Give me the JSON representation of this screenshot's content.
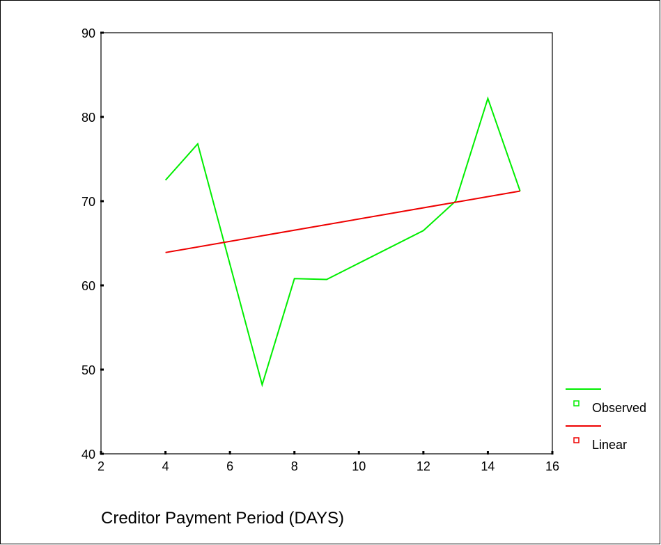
{
  "chart_data": {
    "type": "line",
    "title": "",
    "xlabel": "Creditor Payment Period (DAYS)",
    "ylabel": "",
    "xlim": [
      2,
      16
    ],
    "ylim": [
      40,
      90
    ],
    "x_ticks": [
      "2",
      "4",
      "6",
      "8",
      "10",
      "12",
      "14",
      "16"
    ],
    "y_ticks": [
      "40",
      "50",
      "60",
      "70",
      "80",
      "90"
    ],
    "grid": false,
    "legend_position": "right",
    "series": [
      {
        "name": "Observed",
        "color": "#00ee00",
        "marker": "open-square",
        "points": [
          [
            4,
            72.5
          ],
          [
            5,
            76.8
          ],
          [
            7,
            48.2
          ],
          [
            8,
            60.8
          ],
          [
            9,
            60.7
          ],
          [
            12,
            66.5
          ],
          [
            13,
            70.0
          ],
          [
            14,
            82.2
          ],
          [
            15,
            71.2
          ]
        ]
      },
      {
        "name": "Linear",
        "color": "#ee0000",
        "marker": "open-square",
        "points": [
          [
            4,
            63.9
          ],
          [
            15,
            71.2
          ]
        ]
      }
    ]
  }
}
